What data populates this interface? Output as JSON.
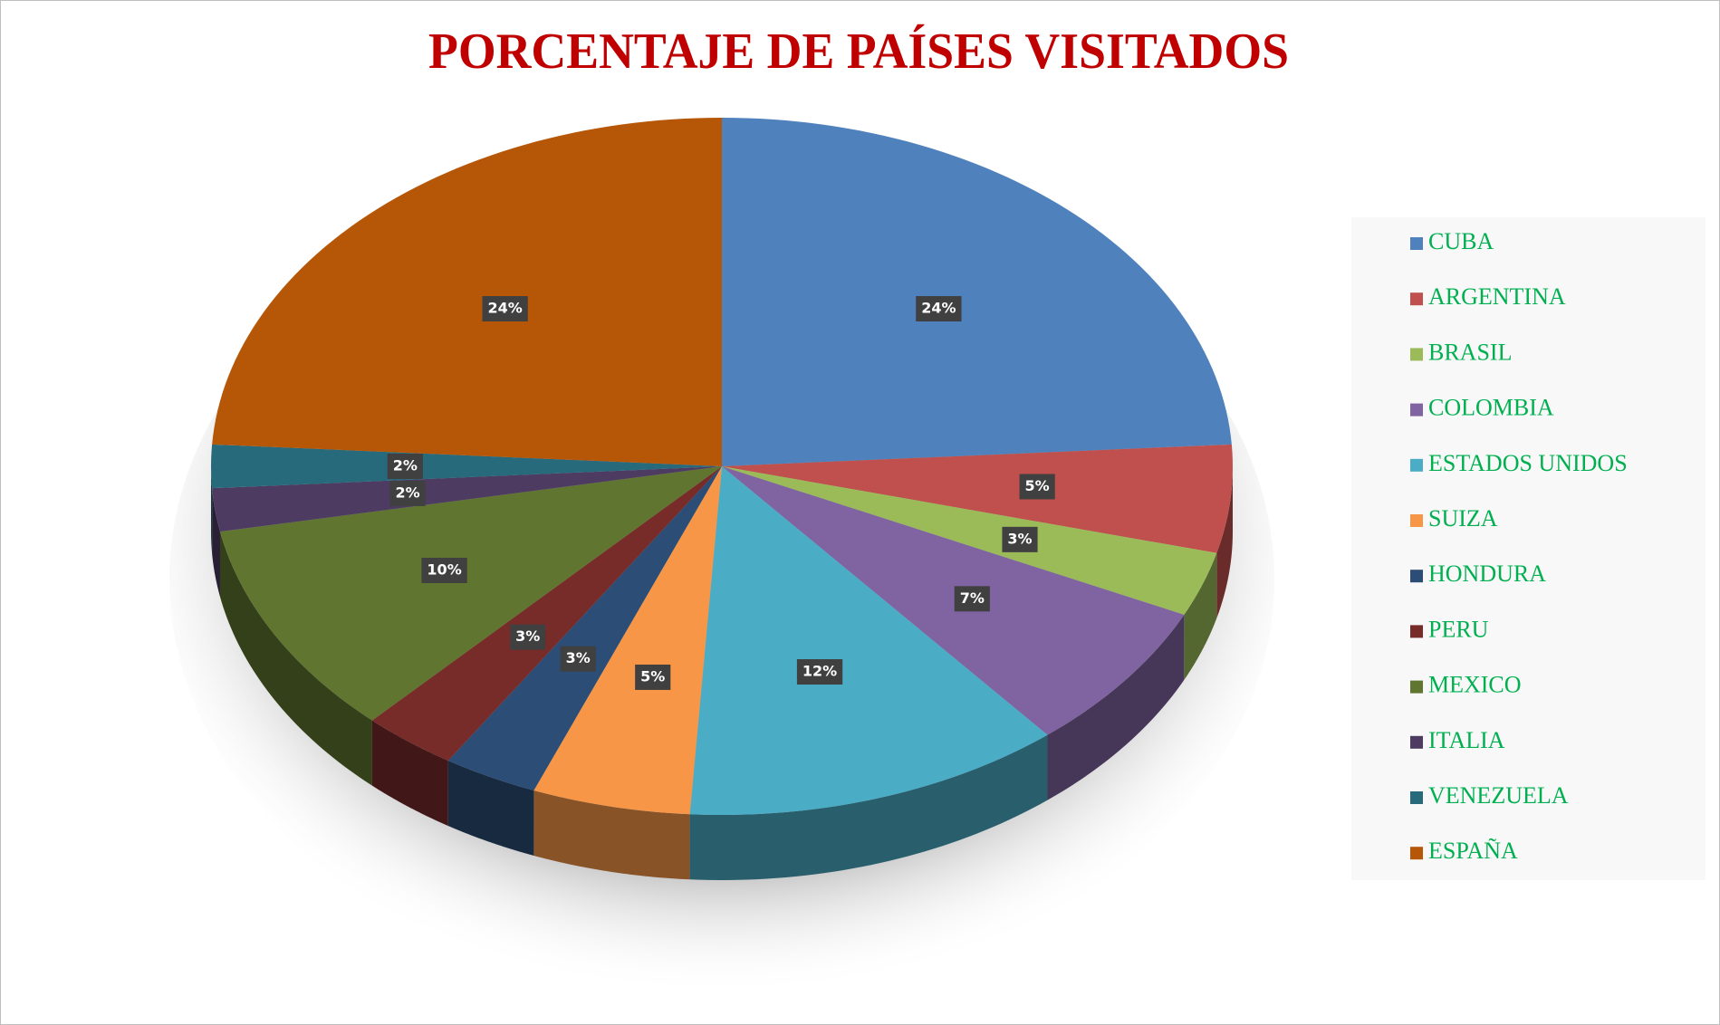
{
  "chart_data": {
    "type": "pie",
    "title": "PORCENTAJE DE PAÍSES VISITADOS",
    "categories": [
      "CUBA",
      "ARGENTINA",
      "BRASIL",
      "COLOMBIA",
      "ESTADOS UNIDOS",
      "SUIZA",
      "HONDURA",
      "PERU",
      "MEXICO",
      "ITALIA",
      "VENEZUELA",
      "ESPAÑA"
    ],
    "values": [
      24,
      5,
      3,
      7,
      12,
      5,
      3,
      3,
      10,
      2,
      2,
      24
    ],
    "value_labels": [
      "24%",
      "5%",
      "3%",
      "7%",
      "12%",
      "5%",
      "3%",
      "3%",
      "10%",
      "2%",
      "2%",
      "24%"
    ],
    "colors": [
      "#4f81bd",
      "#c0504d",
      "#9bbb59",
      "#8064a2",
      "#4bacc6",
      "#f79646",
      "#2c4d75",
      "#772c2a",
      "#5f7530",
      "#4d3b62",
      "#276a7c",
      "#b65708"
    ],
    "legend": "right"
  }
}
